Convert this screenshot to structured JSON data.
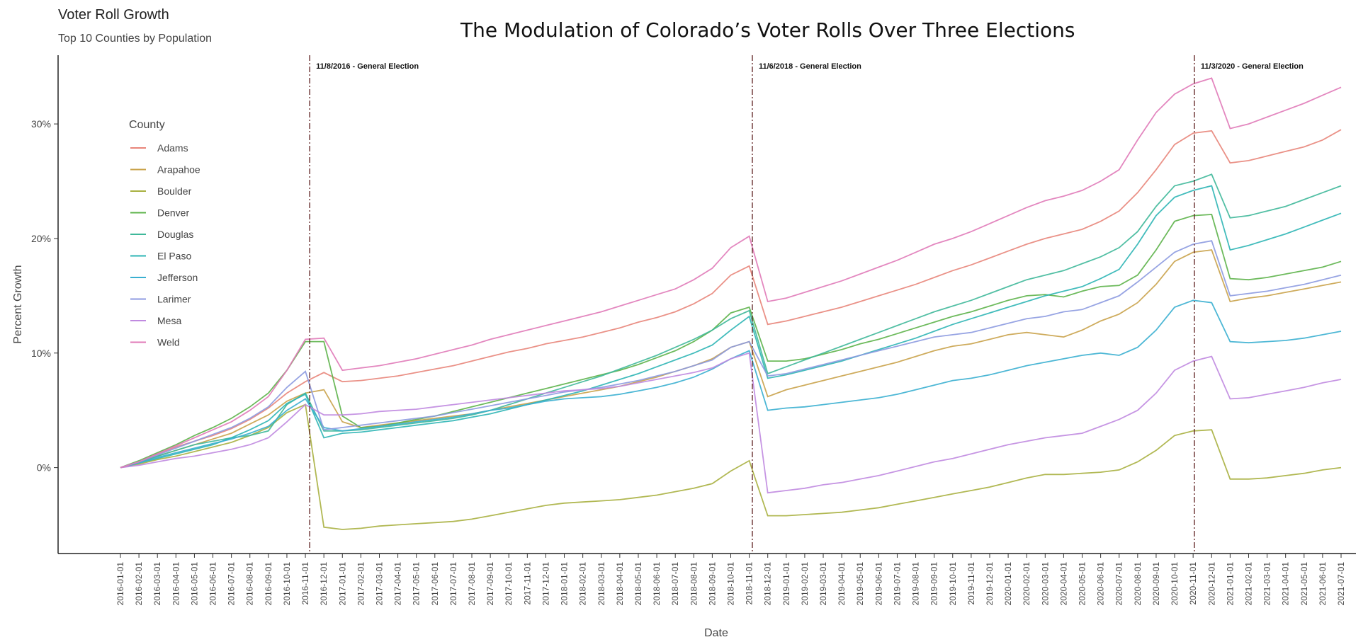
{
  "header": {
    "title": "Voter Roll Growth",
    "subtitle": "Top 10 Counties by Population",
    "main_title": "The Modulation of Colorado’s Voter Rolls Over Three Elections"
  },
  "chart_data": {
    "type": "line",
    "title": "The Modulation of Colorado’s Voter Rolls Over Three Elections",
    "xlabel": "Date",
    "ylabel": "Percent Growth",
    "ylim": [
      -7.5,
      36
    ],
    "yticks": [
      0,
      10,
      20,
      30
    ],
    "ytick_labels": [
      "0%",
      "10%",
      "20%",
      "30%"
    ],
    "grid": false,
    "legend": {
      "title": "County",
      "placement": "left-inside"
    },
    "x": [
      "2016-01-01",
      "2016-02-01",
      "2016-03-01",
      "2016-04-01",
      "2016-05-01",
      "2016-06-01",
      "2016-07-01",
      "2016-08-01",
      "2016-09-01",
      "2016-10-01",
      "2016-11-01",
      "2016-12-01",
      "2017-01-01",
      "2017-02-01",
      "2017-03-01",
      "2017-04-01",
      "2017-05-01",
      "2017-06-01",
      "2017-07-01",
      "2017-08-01",
      "2017-09-01",
      "2017-10-01",
      "2017-11-01",
      "2017-12-01",
      "2018-01-01",
      "2018-02-01",
      "2018-03-01",
      "2018-04-01",
      "2018-05-01",
      "2018-06-01",
      "2018-07-01",
      "2018-08-01",
      "2018-09-01",
      "2018-10-01",
      "2018-11-01",
      "2018-12-01",
      "2019-01-01",
      "2019-02-01",
      "2019-03-01",
      "2019-04-01",
      "2019-05-01",
      "2019-06-01",
      "2019-07-01",
      "2019-08-01",
      "2019-09-01",
      "2019-10-01",
      "2019-11-01",
      "2019-12-01",
      "2020-01-01",
      "2020-02-01",
      "2020-03-01",
      "2020-04-01",
      "2020-05-01",
      "2020-06-01",
      "2020-07-01",
      "2020-08-01",
      "2020-09-01",
      "2020-10-01",
      "2020-11-01",
      "2020-12-01",
      "2021-01-01",
      "2021-02-01",
      "2021-03-01",
      "2021-04-01",
      "2021-05-01",
      "2021-06-01",
      "2021-07-01"
    ],
    "elections": [
      {
        "date": "2016-11-08",
        "label": "11/8/2016 - General Election"
      },
      {
        "date": "2018-11-06",
        "label": "11/6/2018 - General Election"
      },
      {
        "date": "2020-11-03",
        "label": "11/3/2020 - General Election"
      }
    ],
    "series": [
      {
        "name": "Adams",
        "color": "#E8857A",
        "values": [
          0,
          0.5,
          1.2,
          1.8,
          2.3,
          2.8,
          3.4,
          4.2,
          5.2,
          6.5,
          7.5,
          8.3,
          7.5,
          7.6,
          7.8,
          8.0,
          8.3,
          8.6,
          8.9,
          9.3,
          9.7,
          10.1,
          10.4,
          10.8,
          11.1,
          11.4,
          11.8,
          12.2,
          12.7,
          13.1,
          13.6,
          14.3,
          15.2,
          16.8,
          17.6,
          12.5,
          12.8,
          13.2,
          13.6,
          14.0,
          14.5,
          15.0,
          15.5,
          16.0,
          16.6,
          17.2,
          17.7,
          18.3,
          18.9,
          19.5,
          20.0,
          20.4,
          20.8,
          21.5,
          22.4,
          24.0,
          26.0,
          28.2,
          29.2,
          29.4,
          26.6,
          26.8,
          27.2,
          27.6,
          28.0,
          28.6,
          29.5
        ]
      },
      {
        "name": "Arapahoe",
        "color": "#C9A24A",
        "values": [
          0,
          0.4,
          1.0,
          1.5,
          2.0,
          2.5,
          3.0,
          3.8,
          4.6,
          5.8,
          6.5,
          6.8,
          4.0,
          3.5,
          3.7,
          3.9,
          4.1,
          4.3,
          4.5,
          4.7,
          5.0,
          5.3,
          5.6,
          5.9,
          6.2,
          6.5,
          6.8,
          7.1,
          7.5,
          7.9,
          8.4,
          8.9,
          9.5,
          10.5,
          11.0,
          6.2,
          6.8,
          7.2,
          7.6,
          8.0,
          8.4,
          8.8,
          9.2,
          9.7,
          10.2,
          10.6,
          10.8,
          11.2,
          11.6,
          11.8,
          11.6,
          11.4,
          12.0,
          12.8,
          13.4,
          14.4,
          16.0,
          18.0,
          18.8,
          19.0,
          14.5,
          14.8,
          15.0,
          15.3,
          15.6,
          15.9,
          16.2
        ]
      },
      {
        "name": "Boulder",
        "color": "#A8B040",
        "values": [
          0,
          0.3,
          0.7,
          1.0,
          1.4,
          1.8,
          2.2,
          2.8,
          3.5,
          4.8,
          5.5,
          -5.2,
          -5.4,
          -5.3,
          -5.1,
          -5.0,
          -4.9,
          -4.8,
          -4.7,
          -4.5,
          -4.2,
          -3.9,
          -3.6,
          -3.3,
          -3.1,
          -3.0,
          -2.9,
          -2.8,
          -2.6,
          -2.4,
          -2.1,
          -1.8,
          -1.4,
          -0.3,
          0.6,
          -4.2,
          -4.2,
          -4.1,
          -4.0,
          -3.9,
          -3.7,
          -3.5,
          -3.2,
          -2.9,
          -2.6,
          -2.3,
          -2.0,
          -1.7,
          -1.3,
          -0.9,
          -0.6,
          -0.6,
          -0.5,
          -0.4,
          -0.2,
          0.5,
          1.5,
          2.8,
          3.2,
          3.3,
          -1.0,
          -1.0,
          -0.9,
          -0.7,
          -0.5,
          -0.2,
          0.0
        ]
      },
      {
        "name": "Denver",
        "color": "#5DB34A",
        "values": [
          0,
          0.6,
          1.3,
          2.0,
          2.8,
          3.5,
          4.3,
          5.3,
          6.5,
          8.5,
          11.0,
          11.0,
          4.5,
          3.5,
          3.6,
          3.9,
          4.2,
          4.5,
          4.9,
          5.3,
          5.7,
          6.1,
          6.5,
          6.9,
          7.3,
          7.7,
          8.1,
          8.5,
          9.0,
          9.6,
          10.2,
          11.0,
          12.0,
          13.5,
          14.0,
          9.3,
          9.3,
          9.5,
          9.9,
          10.3,
          10.8,
          11.2,
          11.7,
          12.2,
          12.7,
          13.2,
          13.6,
          14.1,
          14.6,
          15.0,
          15.1,
          14.9,
          15.4,
          15.8,
          15.9,
          16.8,
          19.0,
          21.5,
          22.0,
          22.1,
          16.5,
          16.4,
          16.6,
          16.9,
          17.2,
          17.5,
          18.0
        ]
      },
      {
        "name": "Douglas",
        "color": "#3FB89A",
        "values": [
          0,
          0.5,
          1.0,
          1.5,
          2.0,
          2.3,
          2.6,
          2.8,
          3.2,
          5.5,
          6.5,
          3.2,
          3.2,
          3.3,
          3.5,
          3.7,
          3.9,
          4.1,
          4.3,
          4.6,
          5.0,
          5.5,
          6.0,
          6.5,
          7.0,
          7.5,
          8.0,
          8.6,
          9.2,
          9.8,
          10.5,
          11.2,
          12.0,
          13.0,
          13.7,
          8.2,
          8.8,
          9.4,
          10.0,
          10.6,
          11.2,
          11.8,
          12.4,
          13.0,
          13.6,
          14.1,
          14.6,
          15.2,
          15.8,
          16.4,
          16.8,
          17.2,
          17.8,
          18.4,
          19.2,
          20.6,
          22.8,
          24.6,
          25.0,
          25.6,
          21.8,
          22.0,
          22.4,
          22.8,
          23.4,
          24.0,
          24.6
        ]
      },
      {
        "name": "El Paso",
        "color": "#2EB5B5",
        "values": [
          0,
          0.4,
          0.8,
          1.2,
          1.6,
          2.0,
          2.6,
          3.3,
          4.1,
          5.6,
          6.4,
          2.6,
          3.0,
          3.1,
          3.3,
          3.5,
          3.7,
          3.9,
          4.1,
          4.4,
          4.7,
          5.1,
          5.5,
          5.9,
          6.3,
          6.7,
          7.2,
          7.7,
          8.2,
          8.8,
          9.4,
          10.0,
          10.7,
          12.0,
          13.2,
          7.8,
          8.1,
          8.5,
          8.9,
          9.3,
          9.8,
          10.3,
          10.8,
          11.3,
          11.9,
          12.5,
          13.0,
          13.5,
          14.0,
          14.5,
          15.0,
          15.4,
          15.8,
          16.5,
          17.3,
          19.5,
          22.0,
          23.6,
          24.2,
          24.6,
          19.0,
          19.4,
          19.9,
          20.4,
          21.0,
          21.6,
          22.2
        ]
      },
      {
        "name": "Jefferson",
        "color": "#3AAFD0",
        "values": [
          0,
          0.4,
          0.9,
          1.3,
          1.7,
          2.1,
          2.5,
          3.0,
          3.6,
          5.0,
          6.0,
          3.5,
          3.2,
          3.4,
          3.6,
          3.8,
          4.0,
          4.2,
          4.4,
          4.7,
          5.0,
          5.2,
          5.5,
          5.8,
          6.0,
          6.1,
          6.2,
          6.4,
          6.7,
          7.0,
          7.4,
          7.9,
          8.6,
          9.5,
          10.2,
          5.0,
          5.2,
          5.3,
          5.5,
          5.7,
          5.9,
          6.1,
          6.4,
          6.8,
          7.2,
          7.6,
          7.8,
          8.1,
          8.5,
          8.9,
          9.2,
          9.5,
          9.8,
          10.0,
          9.8,
          10.5,
          12.0,
          14.0,
          14.6,
          14.4,
          11.0,
          10.9,
          11.0,
          11.1,
          11.3,
          11.6,
          11.9
        ]
      },
      {
        "name": "Larimer",
        "color": "#8C9AE0",
        "values": [
          0,
          0.5,
          1.1,
          1.7,
          2.3,
          2.9,
          3.5,
          4.3,
          5.3,
          7.0,
          8.4,
          3.3,
          3.5,
          3.7,
          3.9,
          4.1,
          4.3,
          4.5,
          4.8,
          5.1,
          5.4,
          5.7,
          6.0,
          6.3,
          6.6,
          6.8,
          7.0,
          7.3,
          7.6,
          8.0,
          8.4,
          8.9,
          9.4,
          10.5,
          11.0,
          8.0,
          8.2,
          8.6,
          9.0,
          9.4,
          9.8,
          10.2,
          10.6,
          11.0,
          11.4,
          11.6,
          11.8,
          12.2,
          12.6,
          13.0,
          13.2,
          13.6,
          13.8,
          14.4,
          15.0,
          16.2,
          17.5,
          18.8,
          19.5,
          19.8,
          15.0,
          15.2,
          15.4,
          15.7,
          16.0,
          16.4,
          16.8
        ]
      },
      {
        "name": "Mesa",
        "color": "#C08AE0",
        "values": [
          0,
          0.2,
          0.5,
          0.8,
          1.0,
          1.3,
          1.6,
          2.0,
          2.6,
          4.0,
          5.5,
          4.6,
          4.6,
          4.7,
          4.9,
          5.0,
          5.1,
          5.3,
          5.5,
          5.7,
          5.9,
          6.1,
          6.3,
          6.5,
          6.7,
          6.8,
          6.9,
          7.1,
          7.4,
          7.7,
          8.0,
          8.3,
          8.7,
          9.5,
          10.0,
          -2.2,
          -2.0,
          -1.8,
          -1.5,
          -1.3,
          -1.0,
          -0.7,
          -0.3,
          0.1,
          0.5,
          0.8,
          1.2,
          1.6,
          2.0,
          2.3,
          2.6,
          2.8,
          3.0,
          3.6,
          4.2,
          5.0,
          6.5,
          8.5,
          9.3,
          9.7,
          6.0,
          6.1,
          6.4,
          6.7,
          7.0,
          7.4,
          7.7
        ]
      },
      {
        "name": "Weld",
        "color": "#E07AB8",
        "values": [
          0,
          0.5,
          1.2,
          1.9,
          2.6,
          3.3,
          4.0,
          5.0,
          6.2,
          8.5,
          11.2,
          11.3,
          8.5,
          8.7,
          8.9,
          9.2,
          9.5,
          9.9,
          10.3,
          10.7,
          11.2,
          11.6,
          12.0,
          12.4,
          12.8,
          13.2,
          13.6,
          14.1,
          14.6,
          15.1,
          15.6,
          16.4,
          17.4,
          19.2,
          20.2,
          14.5,
          14.8,
          15.3,
          15.8,
          16.3,
          16.9,
          17.5,
          18.1,
          18.8,
          19.5,
          20.0,
          20.6,
          21.3,
          22.0,
          22.7,
          23.3,
          23.7,
          24.2,
          25.0,
          26.0,
          28.6,
          31.0,
          32.6,
          33.5,
          34.0,
          29.6,
          30.0,
          30.6,
          31.2,
          31.8,
          32.5,
          33.2
        ]
      }
    ]
  }
}
